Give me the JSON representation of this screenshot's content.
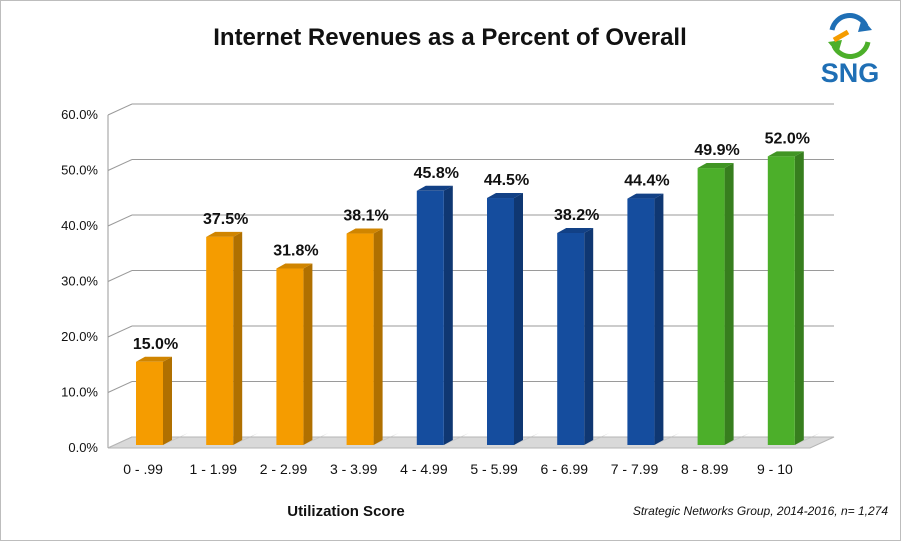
{
  "chart_data": {
    "type": "bar",
    "title": "Internet Revenues as a Percent of Overall",
    "xlabel": "Utilization Score",
    "ylabel": "",
    "categories": [
      "0 - .99",
      "1 - 1.99",
      "2 - 2.99",
      "3 - 3.99",
      "4 - 4.99",
      "5 - 5.99",
      "6 - 6.99",
      "7 - 7.99",
      "8 - 8.99",
      "9 - 10"
    ],
    "values": [
      15.0,
      37.5,
      31.8,
      38.1,
      45.8,
      44.5,
      38.2,
      44.4,
      49.9,
      52.0
    ],
    "data_labels": [
      "15.0%",
      "37.5%",
      "31.8%",
      "38.1%",
      "45.8%",
      "44.5%",
      "38.2%",
      "44.4%",
      "49.9%",
      "52.0%"
    ],
    "bar_colors": [
      "#f59c00",
      "#f59c00",
      "#f59c00",
      "#f59c00",
      "#154d9e",
      "#154d9e",
      "#154d9e",
      "#154d9e",
      "#4caf2a",
      "#4caf2a"
    ],
    "ylim": [
      0,
      60
    ],
    "yticks": [
      "0.0%",
      "10.0%",
      "20.0%",
      "30.0%",
      "40.0%",
      "50.0%",
      "60.0%"
    ],
    "grid": true,
    "legend": "none",
    "source_note": "Strategic Networks Group, 2014-2016, n= 1,274"
  },
  "logo": {
    "text": "SNG"
  }
}
